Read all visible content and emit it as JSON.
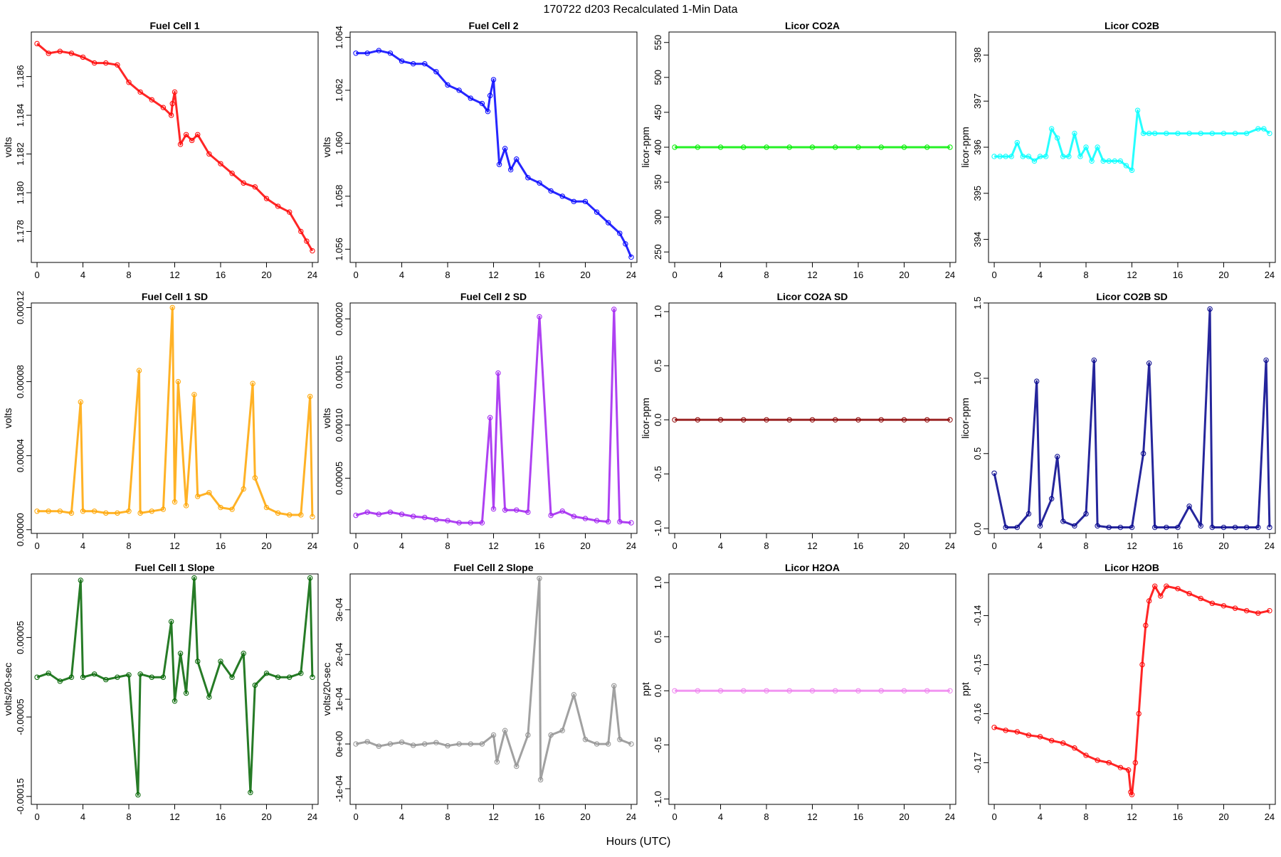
{
  "figure": {
    "title": "170722    d203    Recalculated 1-Min Data",
    "xlabel": "Hours (UTC)"
  },
  "chart_data": [
    {
      "type": "scatter",
      "title": "Fuel Cell 1",
      "ylabel": "volts",
      "color": "#ff0000",
      "xlim": [
        -0.5,
        24.5
      ],
      "ylim": [
        1.1764,
        1.1883
      ],
      "xticks": [
        0,
        4,
        8,
        12,
        16,
        20,
        24
      ],
      "yticks": [
        1.178,
        1.18,
        1.182,
        1.184,
        1.186
      ],
      "yticklabels": [
        "1.178",
        "1.180",
        "1.182",
        "1.184",
        "1.186"
      ],
      "x": [
        0,
        1,
        2,
        3,
        4,
        5,
        6,
        7,
        8,
        9,
        10,
        11,
        11.7,
        11.8,
        12,
        12.5,
        13,
        13.5,
        14,
        15,
        16,
        17,
        18,
        19,
        20,
        21,
        22,
        23,
        23.5,
        24
      ],
      "y": [
        1.1877,
        1.1872,
        1.1873,
        1.1872,
        1.187,
        1.1867,
        1.1867,
        1.1866,
        1.1857,
        1.1852,
        1.1848,
        1.1844,
        1.184,
        1.1846,
        1.1852,
        1.1825,
        1.183,
        1.1827,
        1.183,
        1.182,
        1.1815,
        1.181,
        1.1805,
        1.1803,
        1.1797,
        1.1793,
        1.179,
        1.178,
        1.1775,
        1.177
      ]
    },
    {
      "type": "scatter",
      "title": "Fuel Cell 2",
      "ylabel": "volts",
      "color": "#0000ff",
      "xlim": [
        -0.5,
        24.5
      ],
      "ylim": [
        1.0555,
        1.0642
      ],
      "xticks": [
        0,
        4,
        8,
        12,
        16,
        20,
        24
      ],
      "yticks": [
        1.056,
        1.058,
        1.06,
        1.062,
        1.064
      ],
      "yticklabels": [
        "1.056",
        "1.058",
        "1.060",
        "1.062",
        "1.064"
      ],
      "x": [
        0,
        1,
        2,
        3,
        4,
        5,
        6,
        7,
        8,
        9,
        10,
        11,
        11.5,
        11.7,
        12,
        12.5,
        13,
        13.5,
        14,
        15,
        16,
        17,
        18,
        19,
        20,
        21,
        22,
        23,
        23.5,
        24
      ],
      "y": [
        1.0634,
        1.0634,
        1.0635,
        1.0634,
        1.0631,
        1.063,
        1.063,
        1.0627,
        1.0622,
        1.062,
        1.0617,
        1.0615,
        1.0612,
        1.0618,
        1.0624,
        1.0592,
        1.0598,
        1.059,
        1.0594,
        1.0587,
        1.0585,
        1.0582,
        1.058,
        1.0578,
        1.0578,
        1.0574,
        1.057,
        1.0566,
        1.0562,
        1.0557
      ]
    },
    {
      "type": "scatter",
      "title": "Licor CO2A",
      "ylabel": "licor-ppm",
      "color": "#00ee00",
      "xlim": [
        -0.5,
        24.5
      ],
      "ylim": [
        235,
        565
      ],
      "xticks": [
        0,
        4,
        8,
        12,
        16,
        20,
        24
      ],
      "yticks": [
        250,
        300,
        350,
        400,
        450,
        500,
        550
      ],
      "yticklabels": [
        "250",
        "300",
        "350",
        "400",
        "450",
        "500",
        "550"
      ],
      "x": [
        0,
        2,
        4,
        6,
        8,
        10,
        12,
        14,
        16,
        18,
        20,
        22,
        24
      ],
      "y": [
        400,
        400,
        400,
        400,
        400,
        400,
        400,
        400,
        400,
        400,
        400,
        400,
        400
      ]
    },
    {
      "type": "scatter",
      "title": "Licor CO2B",
      "ylabel": "licor-ppm",
      "color": "#00ffff",
      "xlim": [
        -0.5,
        24.5
      ],
      "ylim": [
        393.5,
        398.5
      ],
      "xticks": [
        0,
        4,
        8,
        12,
        16,
        20,
        24
      ],
      "yticks": [
        394,
        395,
        396,
        397,
        398
      ],
      "yticklabels": [
        "394",
        "395",
        "396",
        "397",
        "398"
      ],
      "x": [
        0,
        0.5,
        1,
        1.5,
        2,
        2.5,
        3,
        3.5,
        4,
        4.5,
        5,
        5.5,
        6,
        6.5,
        7,
        7.5,
        8,
        8.5,
        9,
        9.5,
        10,
        10.5,
        11,
        11.5,
        12,
        12.5,
        13,
        13.5,
        14,
        15,
        16,
        17,
        18,
        19,
        20,
        21,
        22,
        23,
        23.5,
        24
      ],
      "y": [
        395.8,
        395.8,
        395.8,
        395.8,
        396.1,
        395.8,
        395.8,
        395.7,
        395.8,
        395.8,
        396.4,
        396.2,
        395.8,
        395.8,
        396.3,
        395.8,
        396.0,
        395.7,
        396.0,
        395.7,
        395.7,
        395.7,
        395.7,
        395.6,
        395.5,
        396.8,
        396.3,
        396.3,
        396.3,
        396.3,
        396.3,
        396.3,
        396.3,
        396.3,
        396.3,
        396.3,
        396.3,
        396.4,
        396.4,
        396.3
      ]
    },
    {
      "type": "scatter",
      "title": "Fuel Cell 1 SD",
      "ylabel": "volts",
      "color": "#ffa500",
      "xlim": [
        -0.5,
        24.5
      ],
      "ylim": [
        -2e-06,
        0.0001225
      ],
      "xticks": [
        0,
        4,
        8,
        12,
        16,
        20,
        24
      ],
      "yticks": [
        0,
        4e-05,
        8e-05,
        0.00012
      ],
      "yticklabels": [
        "0.00000",
        "0.00004",
        "0.00008",
        "0.00012"
      ],
      "x": [
        0,
        1,
        2,
        3,
        3.8,
        4,
        5,
        6,
        7,
        8,
        8.9,
        9,
        10,
        11,
        11.8,
        12,
        12.3,
        13,
        13.7,
        14,
        15,
        16,
        17,
        18,
        18.8,
        19,
        20,
        21,
        22,
        23,
        23.8,
        24
      ],
      "y": [
        1e-05,
        1e-05,
        1e-05,
        9e-06,
        6.9e-05,
        1e-05,
        1e-05,
        9e-06,
        9e-06,
        1e-05,
        8.6e-05,
        9e-06,
        1e-05,
        1.1e-05,
        0.00012,
        1.5e-05,
        8e-05,
        1.3e-05,
        7.3e-05,
        1.8e-05,
        2e-05,
        1.2e-05,
        1.1e-05,
        2.2e-05,
        7.9e-05,
        2.8e-05,
        1.2e-05,
        9e-06,
        8e-06,
        8e-06,
        7.2e-05,
        7e-06
      ]
    },
    {
      "type": "scatter",
      "title": "Fuel Cell 2 SD",
      "ylabel": "volts",
      "color": "#a020f0",
      "xlim": [
        -0.5,
        24.5
      ],
      "ylim": [
        -2e-06,
        0.000215
      ],
      "xticks": [
        0,
        4,
        8,
        12,
        16,
        20,
        24
      ],
      "yticks": [
        5e-05,
        0.0001,
        0.00015,
        0.0002
      ],
      "yticklabels": [
        "0.00005",
        "0.00010",
        "0.00015",
        "0.00020"
      ],
      "x": [
        0,
        1,
        2,
        3,
        4,
        5,
        6,
        7,
        8,
        9,
        10,
        11,
        11.7,
        12,
        12.4,
        13,
        14,
        15,
        16,
        17,
        18,
        19,
        20,
        21,
        22,
        22.5,
        23,
        24
      ],
      "y": [
        1.5e-05,
        1.8e-05,
        1.6e-05,
        1.8e-05,
        1.6e-05,
        1.4e-05,
        1.3e-05,
        1.1e-05,
        1e-05,
        8e-06,
        8e-06,
        8e-06,
        0.000107,
        2.1e-05,
        0.000149,
        2e-05,
        2e-05,
        1.8e-05,
        0.000202,
        1.5e-05,
        1.9e-05,
        1.4e-05,
        1.2e-05,
        1e-05,
        9e-06,
        0.000209,
        9e-06,
        8e-06
      ]
    },
    {
      "type": "scatter",
      "title": "Licor CO2A SD",
      "ylabel": "licor-ppm",
      "color": "#8b0000",
      "xlim": [
        -0.5,
        24.5
      ],
      "ylim": [
        -1.05,
        1.08
      ],
      "xticks": [
        0,
        4,
        8,
        12,
        16,
        20,
        24
      ],
      "yticks": [
        -1,
        -0.5,
        0,
        0.5,
        1
      ],
      "yticklabels": [
        "-1.0",
        "-0.5",
        "0.0",
        "0.5",
        "1.0"
      ],
      "x": [
        0,
        2,
        4,
        6,
        8,
        10,
        12,
        14,
        16,
        18,
        20,
        22,
        24
      ],
      "y": [
        0,
        0,
        0,
        0,
        0,
        0,
        0,
        0,
        0,
        0,
        0,
        0,
        0
      ]
    },
    {
      "type": "scatter",
      "title": "Licor CO2B SD",
      "ylabel": "licor-ppm",
      "color": "#00008b",
      "xlim": [
        -0.5,
        24.5
      ],
      "ylim": [
        -0.03,
        1.5
      ],
      "xticks": [
        0,
        4,
        8,
        12,
        16,
        20,
        24
      ],
      "yticks": [
        0,
        0.5,
        1,
        1.5
      ],
      "yticklabels": [
        "0.0",
        "0.5",
        "1.0",
        "1.5"
      ],
      "x": [
        0,
        1,
        2,
        3,
        3.7,
        4,
        5,
        5.5,
        6,
        7,
        8,
        8.7,
        9,
        10,
        11,
        12,
        13,
        13.5,
        14,
        15,
        16,
        17,
        18,
        18.8,
        19,
        20,
        21,
        22,
        23,
        23.7,
        24
      ],
      "y": [
        0.37,
        0.01,
        0.01,
        0.1,
        0.98,
        0.02,
        0.2,
        0.48,
        0.05,
        0.02,
        0.1,
        1.12,
        0.02,
        0.01,
        0.01,
        0.01,
        0.5,
        1.1,
        0.01,
        0.01,
        0.01,
        0.15,
        0.02,
        1.46,
        0.01,
        0.01,
        0.01,
        0.01,
        0.01,
        1.12,
        0.01
      ]
    },
    {
      "type": "scatter",
      "title": "Fuel Cell 1 Slope",
      "ylabel": "volts/20-sec",
      "color": "#006400",
      "xlim": [
        -0.5,
        24.5
      ],
      "ylim": [
        -0.00016,
        0.00013
      ],
      "xticks": [
        0,
        4,
        8,
        12,
        16,
        20,
        24
      ],
      "yticks": [
        -0.00015,
        -5e-05,
        5e-05
      ],
      "yticklabels": [
        "-0.00015",
        "-0.00005",
        "0.00005"
      ],
      "x": [
        0,
        1,
        2,
        3,
        3.8,
        4,
        5,
        6,
        7,
        8,
        8.8,
        9,
        10,
        11,
        11.7,
        12,
        12.5,
        13,
        13.7,
        14,
        15,
        16,
        17,
        18,
        18.6,
        19,
        20,
        21,
        22,
        23,
        23.8,
        24
      ],
      "y": [
        0,
        5e-06,
        -5e-06,
        0,
        0.000122,
        0,
        4e-06,
        -3e-06,
        0,
        3e-06,
        -0.000148,
        4e-06,
        0,
        0,
        7e-05,
        -3e-05,
        3e-05,
        -2e-05,
        0.000125,
        2e-05,
        -2.5e-05,
        2e-05,
        0,
        3e-05,
        -0.000145,
        -1e-05,
        5e-06,
        0,
        0,
        5e-06,
        0.000125,
        0
      ]
    },
    {
      "type": "scatter",
      "title": "Fuel Cell 2 Slope",
      "ylabel": "volts/20-sec",
      "color": "#909090",
      "xlim": [
        -0.5,
        24.5
      ],
      "ylim": [
        -0.000135,
        0.00038
      ],
      "xticks": [
        0,
        4,
        8,
        12,
        16,
        20,
        24
      ],
      "yticks": [
        -0.0001,
        0,
        0.0001,
        0.0002,
        0.0003
      ],
      "yticklabels": [
        "-1e-04",
        "0e+00",
        "1e-04",
        "2e-04",
        "3e-04"
      ],
      "x": [
        0,
        1,
        2,
        3,
        4,
        5,
        6,
        7,
        8,
        9,
        10,
        11,
        12,
        12.3,
        13,
        14,
        15,
        16,
        16.1,
        17,
        18,
        19,
        20,
        21,
        22,
        22.5,
        23,
        24
      ],
      "y": [
        0,
        5e-06,
        -5e-06,
        0,
        4e-06,
        -3e-06,
        0,
        3e-06,
        -4e-06,
        0,
        0,
        0,
        2e-05,
        -4e-05,
        3e-05,
        -5e-05,
        2e-05,
        0.00037,
        -8e-05,
        2e-05,
        3e-05,
        0.00011,
        1e-05,
        0,
        0,
        0.00013,
        1e-05,
        0
      ]
    },
    {
      "type": "scatter",
      "title": "Licor H2OA",
      "ylabel": "ppt",
      "color": "#ee82ee",
      "xlim": [
        -0.5,
        24.5
      ],
      "ylim": [
        -1.05,
        1.08
      ],
      "xticks": [
        0,
        4,
        8,
        12,
        16,
        20,
        24
      ],
      "yticks": [
        -1,
        -0.5,
        0,
        0.5,
        1
      ],
      "yticklabels": [
        "-1.0",
        "-0.5",
        "0.0",
        "0.5",
        "1.0"
      ],
      "x": [
        0,
        2,
        4,
        6,
        8,
        10,
        12,
        14,
        16,
        18,
        20,
        22,
        24
      ],
      "y": [
        0,
        0,
        0,
        0,
        0,
        0,
        0,
        0,
        0,
        0,
        0,
        0,
        0
      ]
    },
    {
      "type": "scatter",
      "title": "Licor H2OB",
      "ylabel": "ppt",
      "color": "#ff0000",
      "xlim": [
        -0.5,
        24.5
      ],
      "ylim": [
        -0.1785,
        -0.1315
      ],
      "xticks": [
        0,
        4,
        8,
        12,
        16,
        20,
        24
      ],
      "yticks": [
        -0.17,
        -0.16,
        -0.15,
        -0.14
      ],
      "yticklabels": [
        "-0.17",
        "-0.16",
        "-0.15",
        "-0.14"
      ],
      "x": [
        0,
        1,
        2,
        3,
        4,
        5,
        6,
        7,
        8,
        9,
        10,
        11,
        11.7,
        11.9,
        12,
        12.3,
        12.6,
        12.9,
        13.2,
        13.5,
        14,
        14.5,
        15,
        16,
        17,
        18,
        19,
        20,
        21,
        22,
        23,
        24
      ],
      "y": [
        -0.1628,
        -0.1634,
        -0.1637,
        -0.1644,
        -0.1647,
        -0.1655,
        -0.166,
        -0.167,
        -0.1685,
        -0.1695,
        -0.17,
        -0.171,
        -0.1715,
        -0.176,
        -0.1765,
        -0.17,
        -0.16,
        -0.15,
        -0.142,
        -0.137,
        -0.134,
        -0.136,
        -0.134,
        -0.1345,
        -0.1355,
        -0.1365,
        -0.1375,
        -0.138,
        -0.1385,
        -0.139,
        -0.1395,
        -0.139
      ]
    }
  ]
}
